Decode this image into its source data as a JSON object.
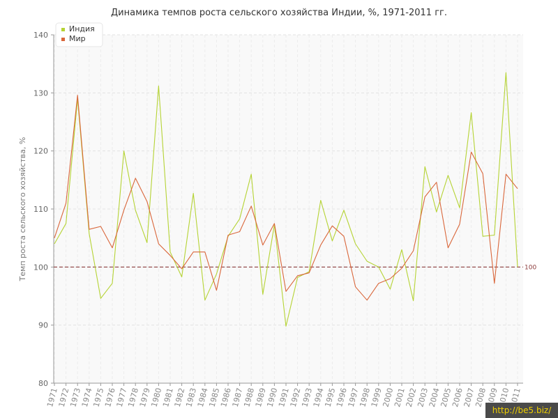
{
  "chart_data": {
    "type": "line",
    "title": "Динамика темпов роста сельского хозяйства Индии, %, 1971-2011 гг.",
    "xlabel": "",
    "ylabel": "Темп роста сельского хозяйства, %",
    "ylim": [
      80,
      140
    ],
    "yticks": [
      80,
      90,
      100,
      110,
      120,
      130,
      140
    ],
    "grid": true,
    "legend_position": "top-left",
    "x": [
      1971,
      1972,
      1973,
      1974,
      1975,
      1976,
      1977,
      1978,
      1979,
      1980,
      1981,
      1982,
      1983,
      1984,
      1985,
      1986,
      1987,
      1988,
      1989,
      1990,
      1991,
      1992,
      1993,
      1994,
      1995,
      1996,
      1997,
      1998,
      1999,
      2000,
      2001,
      2002,
      2003,
      2004,
      2005,
      2006,
      2007,
      2008,
      2009,
      2010,
      2011
    ],
    "series": [
      {
        "name": "Индия",
        "color": "#b5d334",
        "values": [
          104.0,
          107.5,
          129.0,
          105.8,
          94.6,
          97.2,
          120.0,
          109.8,
          104.2,
          131.2,
          102.6,
          98.3,
          112.7,
          94.3,
          98.8,
          105.3,
          108.3,
          116.0,
          95.3,
          107.3,
          89.8,
          98.2,
          99.2,
          111.5,
          104.5,
          109.8,
          104.0,
          101.0,
          100.0,
          96.2,
          103.0,
          94.2,
          117.3,
          109.5,
          115.8,
          110.2,
          126.6,
          105.3,
          105.5,
          133.5,
          100.0
        ]
      },
      {
        "name": "Мир",
        "color": "#d9663a",
        "values": [
          105.0,
          111.0,
          129.6,
          106.5,
          107.0,
          103.3,
          109.8,
          115.3,
          111.3,
          104.0,
          102.0,
          99.7,
          102.6,
          102.6,
          96.0,
          105.5,
          106.1,
          110.5,
          103.8,
          107.5,
          95.8,
          98.5,
          99.0,
          103.8,
          107.1,
          105.3,
          96.6,
          94.3,
          97.2,
          98.0,
          99.8,
          102.8,
          112.1,
          114.6,
          103.3,
          107.4,
          119.8,
          116.1,
          97.2,
          116.0,
          113.5
        ]
      }
    ],
    "reference_line": {
      "value": 100,
      "label": "100",
      "color": "#8b3a3a"
    }
  },
  "watermark": "http://be5.biz/"
}
